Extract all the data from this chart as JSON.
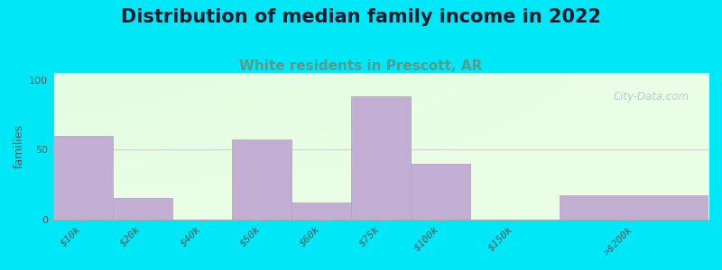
{
  "title": "Distribution of median family income in 2022",
  "subtitle": "White residents in Prescott, AR",
  "ylabel": "families",
  "categories": [
    "$10k",
    "$20k",
    "$40k",
    "$50k",
    "$60k",
    "$75k",
    "$100k",
    "$150k",
    ">$200k"
  ],
  "values": [
    60,
    15,
    0,
    57,
    12,
    88,
    40,
    0,
    17
  ],
  "bar_color": "#c4afd4",
  "bar_edge_color": "#b8a4cc",
  "background_outer": "#00e8f8",
  "title_fontsize": 15,
  "subtitle_fontsize": 11,
  "subtitle_color": "#5a9a8a",
  "ylabel_fontsize": 9,
  "tick_fontsize": 8,
  "yticks": [
    0,
    50,
    100
  ],
  "ylim": [
    0,
    105
  ],
  "watermark": "City-Data.com",
  "watermark_color": "#b0c8d0",
  "bin_edges": [
    0,
    1,
    2,
    3,
    4,
    5,
    6,
    7,
    8.5,
    11
  ],
  "bar_widths": [
    1,
    1,
    1,
    1,
    1,
    1,
    1,
    1.5,
    2.5
  ]
}
